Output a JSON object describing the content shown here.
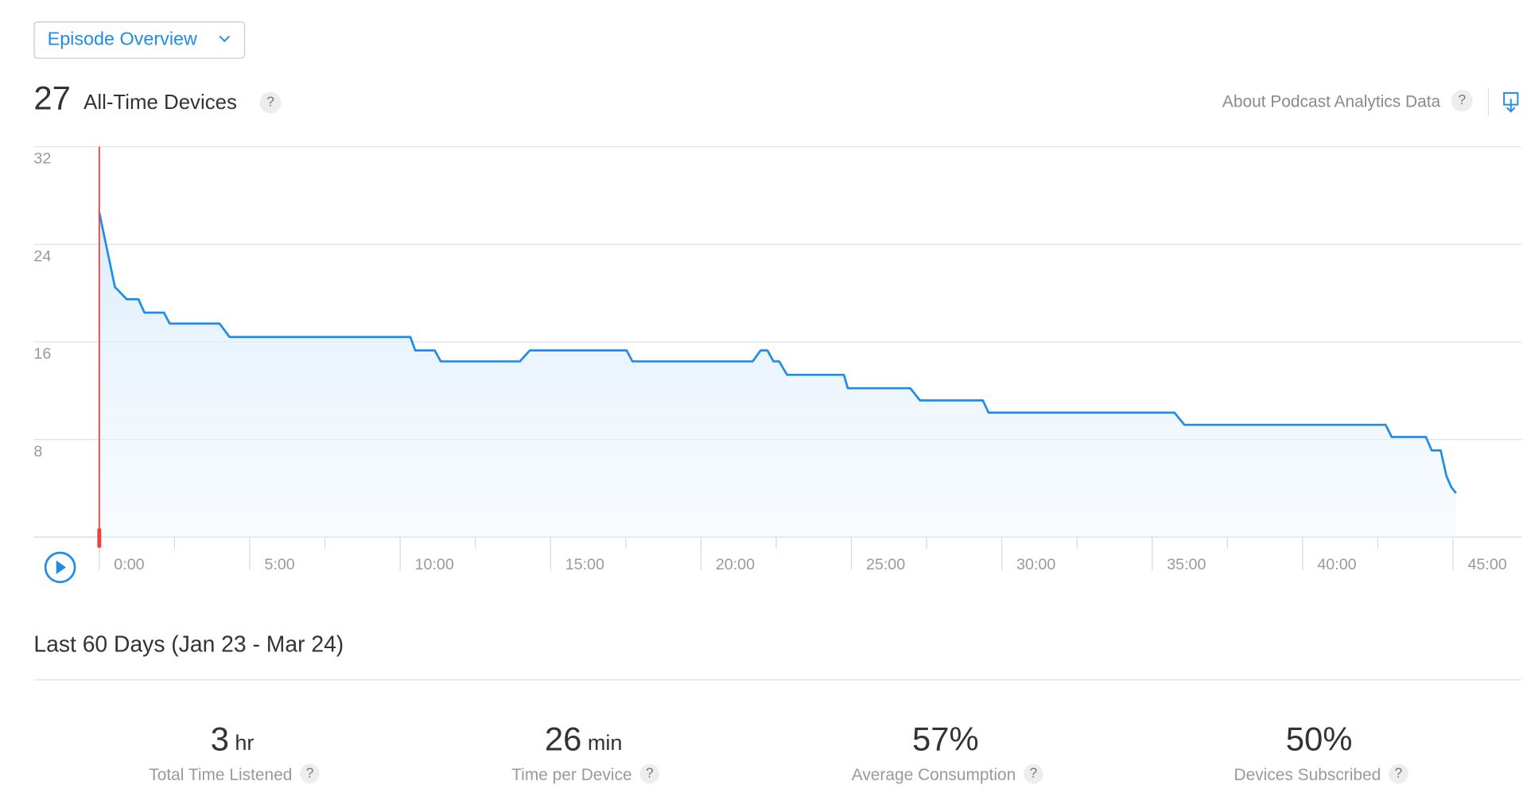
{
  "dropdown": "Episode Overview",
  "header": {
    "count": "27",
    "label": "All-Time Devices",
    "about": "About Podcast Analytics Data"
  },
  "help_icon": "?",
  "chart_data": {
    "type": "line",
    "x": [
      0,
      0.52,
      0.91,
      1.3,
      1.5,
      2.15,
      2.34,
      4.0,
      4.33,
      10.34,
      10.5,
      11.15,
      11.35,
      13.98,
      14.31,
      17.53,
      17.72,
      21.72,
      21.98,
      22.21,
      22.41,
      22.6,
      22.86,
      24.75,
      24.88,
      26.96,
      27.28,
      29.37,
      29.56,
      35.74,
      36.07,
      42.76,
      42.96,
      44.1,
      44.29,
      44.59,
      44.78,
      44.94,
      45.1
    ],
    "series": [
      {
        "color": "#1f8ceb",
        "values": [
          26.6,
          20.5,
          19.5,
          19.5,
          18.4,
          18.4,
          17.5,
          17.5,
          16.4,
          16.4,
          15.3,
          15.3,
          14.4,
          14.4,
          15.3,
          15.3,
          14.4,
          14.4,
          15.3,
          15.3,
          14.4,
          14.4,
          13.3,
          13.3,
          12.2,
          12.2,
          11.2,
          11.2,
          10.2,
          10.2,
          9.2,
          9.2,
          8.2,
          8.2,
          7.1,
          7.1,
          5.0,
          4.1,
          3.6
        ]
      }
    ],
    "xlim": [
      -2.18,
      47.28
    ],
    "ylim": [
      0,
      32
    ],
    "xticks": [
      {
        "value": 0,
        "label": "0:00"
      },
      {
        "value": 5,
        "label": "5:00"
      },
      {
        "value": 10,
        "label": "10:00"
      },
      {
        "value": 15,
        "label": "15:00"
      },
      {
        "value": 20,
        "label": "20:00"
      },
      {
        "value": 25,
        "label": "25:00"
      },
      {
        "value": 30,
        "label": "30:00"
      },
      {
        "value": 35,
        "label": "35:00"
      },
      {
        "value": 40,
        "label": "40:00"
      },
      {
        "value": 45,
        "label": "45:00"
      }
    ],
    "minor_xticks": [
      2.5,
      7.5,
      12.5,
      17.5,
      22.5,
      27.5,
      32.5,
      37.5,
      42.5
    ],
    "yticks": [
      8,
      16,
      24,
      32
    ],
    "grid": true
  },
  "period": "Last 60 Days (Jan 23 - Mar 24)",
  "stats": [
    {
      "value": "3",
      "unit": "hr",
      "label": "Total Time Listened"
    },
    {
      "value": "26",
      "unit": "min",
      "label": "Time per Device"
    },
    {
      "value": "57%",
      "label": "Average Consumption"
    },
    {
      "value": "50%",
      "label": "Devices Subscribed"
    }
  ]
}
